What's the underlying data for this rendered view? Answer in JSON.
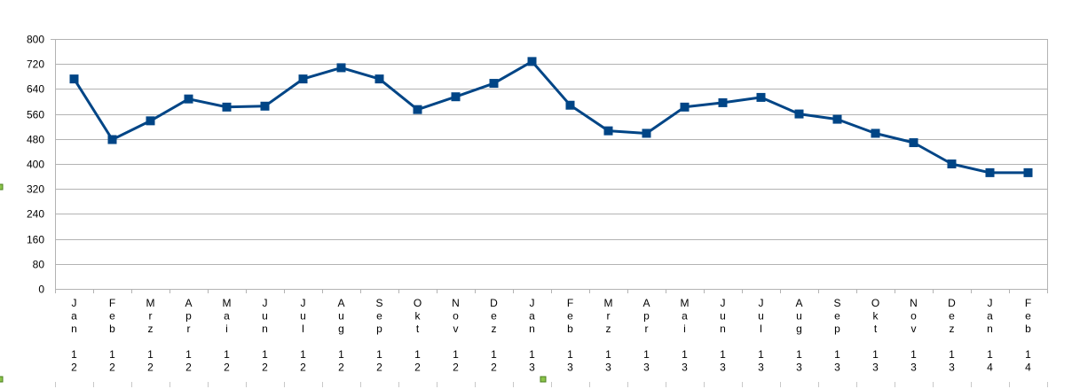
{
  "chart_data": {
    "type": "line",
    "title": "",
    "xlabel": "",
    "ylabel": "",
    "ylim": [
      0,
      800
    ],
    "yticks": [
      "0",
      "80",
      "160",
      "240",
      "320",
      "400",
      "480",
      "560",
      "640",
      "720",
      "800"
    ],
    "grid": "horizontal",
    "legend": "none",
    "line_color": "#004586",
    "marker": "square",
    "categories": [
      "Jan 12",
      "Feb 12",
      "Mrz 12",
      "Apr 12",
      "Mai 12",
      "Jun 12",
      "Jul 12",
      "Aug 12",
      "Sep 12",
      "Okt 12",
      "Nov 12",
      "Dez 12",
      "Jan 13",
      "Feb 13",
      "Mrz 13",
      "Apr 13",
      "Mai 13",
      "Jun 13",
      "Jul 13",
      "Aug 13",
      "Sep 13",
      "Okt 13",
      "Nov 13",
      "Dez 13",
      "Jan 14",
      "Feb 14"
    ],
    "series": [
      {
        "values": [
          672,
          478,
          538,
          608,
          582,
          585,
          672,
          708,
          672,
          574,
          615,
          658,
          728,
          588,
          506,
          498,
          582,
          596,
          613,
          560,
          543,
          498,
          468,
          400,
          372,
          372
        ]
      }
    ]
  }
}
